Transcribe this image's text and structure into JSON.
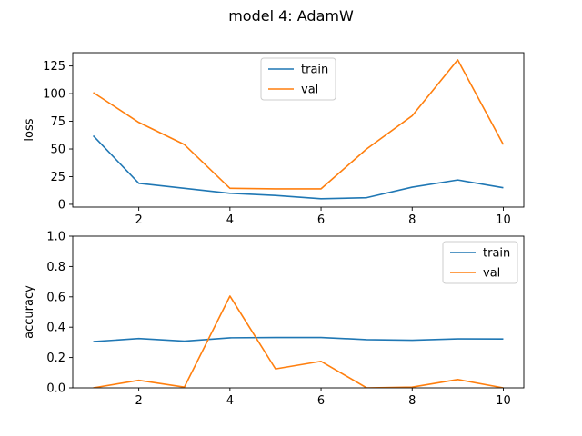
{
  "suptitle": "model 4: AdamW",
  "colors": {
    "train": "#1f77b4",
    "val": "#ff7f0e"
  },
  "chart_data": [
    {
      "type": "line",
      "title": "",
      "xlabel": "",
      "ylabel": "loss",
      "x": [
        1,
        2,
        3,
        4,
        5,
        6,
        7,
        8,
        9,
        10
      ],
      "xticks": [
        2,
        4,
        6,
        8,
        10
      ],
      "xlim": [
        0.55,
        10.45
      ],
      "ylim": [
        -2.5,
        137
      ],
      "yticks": [
        0,
        25,
        50,
        75,
        100,
        125
      ],
      "grid": false,
      "legend": "top-center",
      "series": [
        {
          "name": "train",
          "values": [
            62,
            19,
            14.5,
            10,
            8,
            5,
            6,
            15.5,
            22,
            15
          ]
        },
        {
          "name": "val",
          "values": [
            101,
            74,
            54,
            14.5,
            14,
            14,
            50,
            80,
            130.5,
            54
          ]
        }
      ]
    },
    {
      "type": "line",
      "title": "",
      "xlabel": "",
      "ylabel": "accuracy",
      "x": [
        1,
        2,
        3,
        4,
        5,
        6,
        7,
        8,
        9,
        10
      ],
      "xticks": [
        2,
        4,
        6,
        8,
        10
      ],
      "xlim": [
        0.55,
        10.45
      ],
      "ylim": [
        0,
        1
      ],
      "yticks": [
        0.0,
        0.2,
        0.4,
        0.6,
        0.8,
        1.0
      ],
      "grid": false,
      "legend": "top-right",
      "series": [
        {
          "name": "train",
          "values": [
            0.305,
            0.325,
            0.308,
            0.33,
            0.332,
            0.332,
            0.318,
            0.314,
            0.323,
            0.322
          ]
        },
        {
          "name": "val",
          "values": [
            0.0,
            0.05,
            0.005,
            0.605,
            0.125,
            0.175,
            0.0,
            0.005,
            0.055,
            0.0
          ]
        }
      ]
    }
  ]
}
